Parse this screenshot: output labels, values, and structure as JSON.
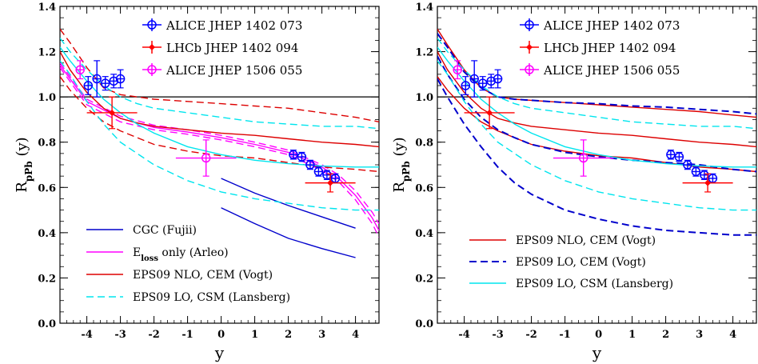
{
  "chart_data": [
    {
      "type": "line",
      "xlabel": "y",
      "ylabel": "R",
      "ylabel_sub": "pPb",
      "ylabel_suffix": " (y)",
      "xlim": [
        -4.8,
        4.7
      ],
      "ylim": [
        0.0,
        1.4
      ],
      "xticks": [
        -4,
        -3,
        -2,
        -1,
        0,
        1,
        2,
        3,
        4
      ],
      "yticks": [
        0.0,
        0.2,
        0.4,
        0.6,
        0.8,
        1.0,
        1.2,
        1.4
      ],
      "reference_line": 1.0,
      "data_legend": [
        {
          "label": "ALICE  JHEP  1402  073",
          "color": "#0000ff"
        },
        {
          "label": "LHCb  JHEP  1402  094",
          "color": "#ff0000"
        },
        {
          "label": "ALICE  JHEP  1506  055",
          "color": "#ff00ff"
        }
      ],
      "model_legend": [
        {
          "label": "CGC (Fujii)",
          "color": "#0000cc",
          "style": "solid"
        },
        {
          "label": "E",
          "sub": "loss",
          "suffix": " only (Arleo)",
          "color": "#ff00ff",
          "style": "solid"
        },
        {
          "label": "EPS09 NLO, CEM (Vogt)",
          "color": "#dd0000",
          "style": "solid"
        },
        {
          "label": "EPS09 LO, CSM (Lansberg)",
          "color": "#00e5ee",
          "style": "dashed"
        }
      ],
      "points": [
        {
          "name": "ALICE JHEP 1402 073",
          "color": "#0000ff",
          "marker": "circle",
          "data": [
            {
              "x": -3.96,
              "y": 1.05,
              "dx": 0.12,
              "ey": 0.04
            },
            {
              "x": -3.7,
              "y": 1.08,
              "dx": 0.12,
              "ey": 0.08
            },
            {
              "x": -3.2,
              "y": 1.07,
              "dx": 0.12,
              "ey": 0.03
            },
            {
              "x": -3.45,
              "y": 1.06,
              "dx": 0.12,
              "ey": 0.03
            },
            {
              "x": -3.0,
              "y": 1.08,
              "dx": 0.12,
              "ey": 0.04
            },
            {
              "x": 2.15,
              "y": 0.745,
              "dx": 0.12,
              "ey": 0.02
            },
            {
              "x": 2.4,
              "y": 0.735,
              "dx": 0.12,
              "ey": 0.02
            },
            {
              "x": 2.65,
              "y": 0.7,
              "dx": 0.12,
              "ey": 0.02
            },
            {
              "x": 2.9,
              "y": 0.67,
              "dx": 0.12,
              "ey": 0.02
            },
            {
              "x": 3.15,
              "y": 0.655,
              "dx": 0.12,
              "ey": 0.02
            },
            {
              "x": 3.4,
              "y": 0.64,
              "dx": 0.12,
              "ey": 0.02
            }
          ]
        },
        {
          "name": "LHCb JHEP 1402 094",
          "color": "#ff0000",
          "marker": "diamond",
          "data": [
            {
              "x": -3.25,
              "y": 0.93,
              "dx": 0.75,
              "ey": 0.07
            },
            {
              "x": 3.25,
              "y": 0.62,
              "dx": 0.75,
              "ey": 0.04
            }
          ]
        },
        {
          "name": "ALICE JHEP 1506 055",
          "color": "#ff00ff",
          "marker": "circle",
          "data": [
            {
              "x": -4.2,
              "y": 1.12,
              "dx": 0.12,
              "ey": 0.04
            },
            {
              "x": -0.45,
              "y": 0.73,
              "dx": 0.9,
              "ey": 0.08
            }
          ]
        }
      ],
      "series": [
        {
          "name": "CGC (Fujii) upper",
          "color": "#0000cc",
          "style": "solid",
          "x": [
            0,
            1,
            2,
            3,
            4
          ],
          "y": [
            0.64,
            0.575,
            0.52,
            0.47,
            0.42
          ]
        },
        {
          "name": "CGC (Fujii) lower",
          "color": "#0000cc",
          "style": "solid",
          "x": [
            0,
            1,
            2,
            3,
            4
          ],
          "y": [
            0.51,
            0.44,
            0.375,
            0.33,
            0.29
          ]
        },
        {
          "name": "Eloss upper",
          "color": "#ff00ff",
          "style": "dashed",
          "x": [
            -4.8,
            -4,
            -3,
            -2,
            -1,
            0,
            1,
            2,
            3,
            3.5,
            4,
            4.5,
            4.7
          ],
          "y": [
            1.15,
            0.99,
            0.915,
            0.875,
            0.855,
            0.83,
            0.8,
            0.765,
            0.7,
            0.655,
            0.585,
            0.49,
            0.44
          ]
        },
        {
          "name": "Eloss central",
          "color": "#ff00ff",
          "style": "solid",
          "x": [
            -4.8,
            -4,
            -3,
            -2,
            -1,
            0,
            1,
            2,
            3,
            3.5,
            4,
            4.5,
            4.7
          ],
          "y": [
            1.14,
            0.98,
            0.905,
            0.865,
            0.845,
            0.82,
            0.79,
            0.755,
            0.69,
            0.64,
            0.565,
            0.465,
            0.41
          ]
        },
        {
          "name": "Eloss lower",
          "color": "#ff00ff",
          "style": "dashed",
          "x": [
            -4.8,
            -4,
            -3,
            -2,
            -1,
            0,
            1,
            2,
            3,
            3.5,
            4,
            4.5,
            4.7
          ],
          "y": [
            1.13,
            0.965,
            0.89,
            0.855,
            0.835,
            0.81,
            0.78,
            0.745,
            0.675,
            0.625,
            0.545,
            0.44,
            0.38
          ]
        },
        {
          "name": "EPS09 NLO upper",
          "color": "#dd0000",
          "style": "dashed",
          "x": [
            -4.8,
            -4.5,
            -4,
            -3.5,
            -3,
            -2.5,
            -2,
            -1,
            0,
            1,
            2,
            3,
            4,
            4.7
          ],
          "y": [
            1.3,
            1.24,
            1.13,
            1.04,
            1.01,
            1.0,
            0.99,
            0.98,
            0.97,
            0.96,
            0.95,
            0.93,
            0.91,
            0.89
          ]
        },
        {
          "name": "EPS09 NLO central",
          "color": "#dd0000",
          "style": "solid",
          "x": [
            -4.8,
            -4.5,
            -4,
            -3.5,
            -3,
            -2.5,
            -2,
            -1,
            0,
            1,
            2,
            3,
            4,
            4.7
          ],
          "y": [
            1.2,
            1.12,
            1.02,
            0.95,
            0.905,
            0.885,
            0.87,
            0.855,
            0.84,
            0.83,
            0.815,
            0.8,
            0.79,
            0.78
          ]
        },
        {
          "name": "EPS09 NLO lower",
          "color": "#dd0000",
          "style": "dashed",
          "x": [
            -4.8,
            -4.5,
            -4,
            -3.5,
            -3,
            -2.5,
            -2,
            -1,
            0,
            1,
            2,
            3,
            4,
            4.7
          ],
          "y": [
            1.09,
            1.03,
            0.95,
            0.89,
            0.85,
            0.82,
            0.79,
            0.76,
            0.74,
            0.73,
            0.71,
            0.69,
            0.68,
            0.67
          ]
        },
        {
          "name": "EPS09 LO CSM upper",
          "color": "#00e5ee",
          "style": "dashed",
          "x": [
            -4.8,
            -4.5,
            -4,
            -3.5,
            -3,
            -2.5,
            -2,
            -1,
            0,
            1,
            2,
            3,
            4,
            4.7
          ],
          "y": [
            1.26,
            1.2,
            1.12,
            1.05,
            1.0,
            0.97,
            0.95,
            0.93,
            0.91,
            0.89,
            0.88,
            0.87,
            0.87,
            0.86
          ]
        },
        {
          "name": "EPS09 LO CSM central",
          "color": "#00e5ee",
          "style": "solid",
          "x": [
            -4.8,
            -4.5,
            -4,
            -3.5,
            -3,
            -2.5,
            -2,
            -1,
            0,
            1,
            2,
            3,
            4,
            4.7
          ],
          "y": [
            1.22,
            1.16,
            1.07,
            0.99,
            0.93,
            0.88,
            0.84,
            0.78,
            0.745,
            0.72,
            0.705,
            0.695,
            0.69,
            0.69
          ]
        },
        {
          "name": "EPS09 LO CSM lower",
          "color": "#00e5ee",
          "style": "dashed",
          "x": [
            -4.8,
            -4.5,
            -4,
            -3.5,
            -3,
            -2.5,
            -2,
            -1,
            0,
            1,
            2,
            3,
            4,
            4.7
          ],
          "y": [
            1.16,
            1.1,
            0.98,
            0.88,
            0.8,
            0.75,
            0.7,
            0.63,
            0.58,
            0.55,
            0.53,
            0.51,
            0.5,
            0.5
          ]
        }
      ]
    },
    {
      "type": "line",
      "xlabel": "y",
      "ylabel": "R",
      "ylabel_sub": "pPb",
      "ylabel_suffix": " (y)",
      "xlim": [
        -4.8,
        4.7
      ],
      "ylim": [
        0.0,
        1.4
      ],
      "xticks": [
        -4,
        -3,
        -2,
        -1,
        0,
        1,
        2,
        3,
        4
      ],
      "yticks": [
        0.0,
        0.2,
        0.4,
        0.6,
        0.8,
        1.0,
        1.2,
        1.4
      ],
      "reference_line": 1.0,
      "data_legend": [
        {
          "label": "ALICE  JHEP  1402  073",
          "color": "#0000ff"
        },
        {
          "label": "LHCb  JHEP  1402  094",
          "color": "#ff0000"
        },
        {
          "label": "ALICE  JHEP  1506  055",
          "color": "#ff00ff"
        }
      ],
      "model_legend": [
        {
          "label": "EPS09 NLO, CEM (Vogt)",
          "color": "#dd0000",
          "style": "solid"
        },
        {
          "label": "EPS09 LO, CEM (Vogt)",
          "color": "#0000cc",
          "style": "dashed"
        },
        {
          "label": "EPS09 LO, CSM (Lansberg)",
          "color": "#00e5ee",
          "style": "solid"
        }
      ],
      "points": [
        {
          "name": "ALICE JHEP 1402 073",
          "color": "#0000ff",
          "marker": "circle",
          "data": [
            {
              "x": -3.96,
              "y": 1.05,
              "dx": 0.12,
              "ey": 0.04
            },
            {
              "x": -3.7,
              "y": 1.08,
              "dx": 0.12,
              "ey": 0.08
            },
            {
              "x": -3.2,
              "y": 1.07,
              "dx": 0.12,
              "ey": 0.03
            },
            {
              "x": -3.45,
              "y": 1.06,
              "dx": 0.12,
              "ey": 0.03
            },
            {
              "x": -3.0,
              "y": 1.08,
              "dx": 0.12,
              "ey": 0.04
            },
            {
              "x": 2.15,
              "y": 0.745,
              "dx": 0.12,
              "ey": 0.02
            },
            {
              "x": 2.4,
              "y": 0.735,
              "dx": 0.12,
              "ey": 0.02
            },
            {
              "x": 2.65,
              "y": 0.7,
              "dx": 0.12,
              "ey": 0.02
            },
            {
              "x": 2.9,
              "y": 0.67,
              "dx": 0.12,
              "ey": 0.02
            },
            {
              "x": 3.15,
              "y": 0.655,
              "dx": 0.12,
              "ey": 0.02
            },
            {
              "x": 3.4,
              "y": 0.64,
              "dx": 0.12,
              "ey": 0.02
            }
          ]
        },
        {
          "name": "LHCb JHEP 1402 094",
          "color": "#ff0000",
          "marker": "diamond",
          "data": [
            {
              "x": -3.25,
              "y": 0.93,
              "dx": 0.75,
              "ey": 0.07
            },
            {
              "x": 3.25,
              "y": 0.62,
              "dx": 0.75,
              "ey": 0.04
            }
          ]
        },
        {
          "name": "ALICE JHEP 1506 055",
          "color": "#ff00ff",
          "marker": "circle",
          "data": [
            {
              "x": -4.2,
              "y": 1.12,
              "dx": 0.12,
              "ey": 0.04
            },
            {
              "x": -0.45,
              "y": 0.73,
              "dx": 0.9,
              "ey": 0.08
            }
          ]
        }
      ],
      "series": [
        {
          "name": "EPS09 NLO CEM upper",
          "color": "#dd0000",
          "style": "solid",
          "x": [
            -4.8,
            -4.5,
            -4,
            -3.5,
            -3,
            -2.5,
            -2,
            -1,
            0,
            1,
            2,
            3,
            4,
            4.7
          ],
          "y": [
            1.3,
            1.23,
            1.12,
            1.04,
            1.0,
            0.99,
            0.985,
            0.975,
            0.965,
            0.955,
            0.945,
            0.935,
            0.92,
            0.91
          ]
        },
        {
          "name": "EPS09 NLO CEM central",
          "color": "#dd0000",
          "style": "solid",
          "x": [
            -4.8,
            -4.5,
            -4,
            -3.5,
            -3,
            -2.5,
            -2,
            -1,
            0,
            1,
            2,
            3,
            4,
            4.7
          ],
          "y": [
            1.2,
            1.12,
            1.02,
            0.95,
            0.905,
            0.885,
            0.87,
            0.855,
            0.84,
            0.83,
            0.815,
            0.8,
            0.79,
            0.78
          ]
        },
        {
          "name": "EPS09 NLO CEM lower",
          "color": "#dd0000",
          "style": "solid",
          "x": [
            -4.8,
            -4.5,
            -4,
            -3.5,
            -3,
            -2.5,
            -2,
            -1,
            0,
            1,
            2,
            3,
            4,
            4.7
          ],
          "y": [
            1.09,
            1.03,
            0.95,
            0.89,
            0.85,
            0.82,
            0.79,
            0.76,
            0.74,
            0.73,
            0.71,
            0.69,
            0.68,
            0.67
          ]
        },
        {
          "name": "EPS09 LO CEM upper",
          "color": "#0000cc",
          "style": "dashed",
          "x": [
            -4.8,
            -4.5,
            -4,
            -3.5,
            -3,
            -2.5,
            -2,
            -1,
            0,
            1,
            2,
            3,
            4,
            4.7
          ],
          "y": [
            1.28,
            1.22,
            1.11,
            1.04,
            1.0,
            0.99,
            0.985,
            0.975,
            0.97,
            0.96,
            0.955,
            0.945,
            0.935,
            0.925
          ]
        },
        {
          "name": "EPS09 LO CEM central",
          "color": "#0000cc",
          "style": "dashed",
          "x": [
            -4.8,
            -4.5,
            -4,
            -3.5,
            -3,
            -2.5,
            -2,
            -1,
            0,
            1,
            2,
            3,
            4,
            4.7
          ],
          "y": [
            1.18,
            1.1,
            0.99,
            0.91,
            0.855,
            0.82,
            0.79,
            0.755,
            0.735,
            0.72,
            0.71,
            0.7,
            0.68,
            0.67
          ]
        },
        {
          "name": "EPS09 LO CEM lower",
          "color": "#0000cc",
          "style": "dashed",
          "x": [
            -4.8,
            -4.5,
            -4,
            -3.5,
            -3,
            -2.5,
            -2,
            -1,
            0,
            1,
            2,
            3,
            4,
            4.7
          ],
          "y": [
            1.08,
            1.0,
            0.88,
            0.78,
            0.69,
            0.62,
            0.57,
            0.5,
            0.46,
            0.43,
            0.41,
            0.4,
            0.39,
            0.39
          ]
        },
        {
          "name": "EPS09 LO CSM upper",
          "color": "#00e5ee",
          "style": "dashed",
          "x": [
            -4.8,
            -4.5,
            -4,
            -3.5,
            -3,
            -2.5,
            -2,
            -1,
            0,
            1,
            2,
            3,
            4,
            4.7
          ],
          "y": [
            1.26,
            1.2,
            1.12,
            1.05,
            1.0,
            0.97,
            0.95,
            0.93,
            0.91,
            0.89,
            0.88,
            0.87,
            0.87,
            0.86
          ]
        },
        {
          "name": "EPS09 LO CSM central",
          "color": "#00e5ee",
          "style": "solid",
          "x": [
            -4.8,
            -4.5,
            -4,
            -3.5,
            -3,
            -2.5,
            -2,
            -1,
            0,
            1,
            2,
            3,
            4,
            4.7
          ],
          "y": [
            1.22,
            1.16,
            1.07,
            0.99,
            0.93,
            0.88,
            0.84,
            0.78,
            0.745,
            0.72,
            0.705,
            0.695,
            0.69,
            0.69
          ]
        },
        {
          "name": "EPS09 LO CSM lower",
          "color": "#00e5ee",
          "style": "dashed",
          "x": [
            -4.8,
            -4.5,
            -4,
            -3.5,
            -3,
            -2.5,
            -2,
            -1,
            0,
            1,
            2,
            3,
            4,
            4.7
          ],
          "y": [
            1.16,
            1.1,
            0.98,
            0.88,
            0.8,
            0.75,
            0.7,
            0.63,
            0.58,
            0.55,
            0.53,
            0.51,
            0.5,
            0.5
          ]
        }
      ]
    }
  ]
}
